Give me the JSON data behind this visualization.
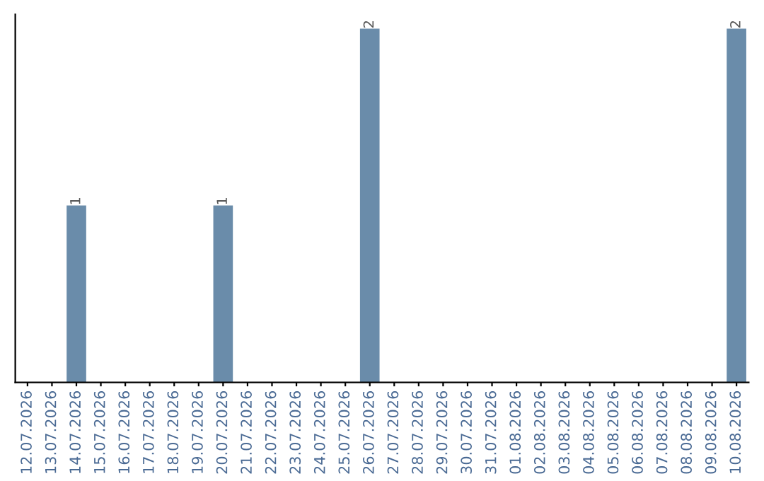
{
  "chart_data": {
    "type": "bar",
    "categories": [
      "12.07.2026",
      "13.07.2026",
      "14.07.2026",
      "15.07.2026",
      "16.07.2026",
      "17.07.2026",
      "18.07.2026",
      "19.07.2026",
      "20.07.2026",
      "21.07.2026",
      "22.07.2026",
      "23.07.2026",
      "24.07.2026",
      "25.07.2026",
      "26.07.2026",
      "27.07.2026",
      "28.07.2026",
      "29.07.2026",
      "30.07.2026",
      "31.07.2026",
      "01.08.2026",
      "02.08.2026",
      "03.08.2026",
      "04.08.2026",
      "05.08.2026",
      "06.08.2026",
      "07.08.2026",
      "08.08.2026",
      "09.08.2026",
      "10.08.2026"
    ],
    "values": [
      0,
      0,
      1,
      0,
      0,
      0,
      0,
      0,
      1,
      0,
      0,
      0,
      0,
      0,
      2,
      0,
      0,
      0,
      0,
      0,
      0,
      0,
      0,
      0,
      0,
      0,
      0,
      0,
      0,
      2
    ],
    "value_labels": [
      null,
      null,
      "1",
      null,
      null,
      null,
      null,
      null,
      "1",
      null,
      null,
      null,
      null,
      null,
      "2",
      null,
      null,
      null,
      null,
      null,
      null,
      null,
      null,
      null,
      null,
      null,
      null,
      null,
      null,
      "2"
    ],
    "color": "#6a8caa",
    "ylim": [
      0,
      2.08
    ],
    "tick_labels": "x",
    "grid": false,
    "legend": false
  }
}
